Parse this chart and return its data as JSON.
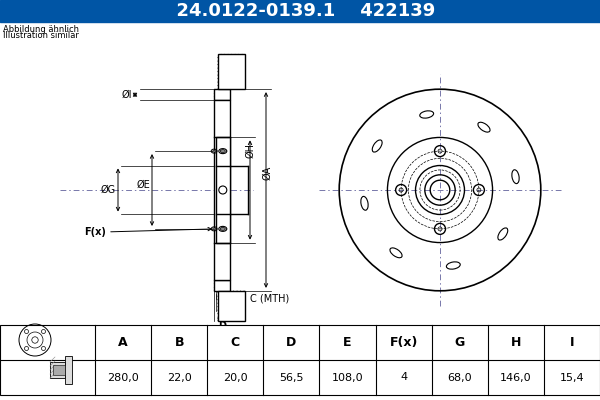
{
  "title_part1": "24.0122-0139.1",
  "title_part2": "422139",
  "title_bg": "#0055a5",
  "title_fg": "#ffffff",
  "note_line1": "Abbildung ähnlich",
  "note_line2": "Illustration similar",
  "table_headers": [
    "A",
    "B",
    "C",
    "D",
    "E",
    "F(x)",
    "G",
    "H",
    "I"
  ],
  "table_values": [
    "280,0",
    "22,0",
    "20,0",
    "56,5",
    "108,0",
    "4",
    "68,0",
    "146,0",
    "15,4"
  ],
  "bg_color": "#ffffff",
  "drawing_bg": "#ffffff",
  "line_color": "#000000",
  "dim_color": "#000000",
  "center_line_color": "#7777aa",
  "title_bg2": "#3366cc"
}
